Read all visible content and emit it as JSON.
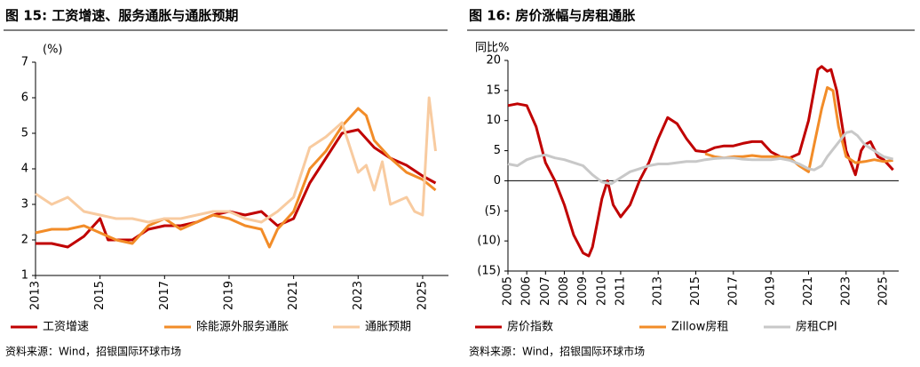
{
  "chart_data": [
    {
      "type": "line",
      "title": "图 15: 工资增速、服务通胀与通胀预期",
      "y_label": "(%)",
      "xlim": [
        2013,
        2025.8
      ],
      "xticks": [
        2013,
        2015,
        2017,
        2019,
        2021,
        2023,
        2025
      ],
      "ylim": [
        1,
        7
      ],
      "yticks": [
        1,
        2,
        3,
        4,
        5,
        6,
        7
      ],
      "grid": false,
      "source": "资料来源：Wind，招银国际环球市场",
      "series": [
        {
          "name": "工资增速",
          "color": "#c00000",
          "x": [
            2013,
            2013.5,
            2014,
            2014.5,
            2015,
            2015.25,
            2015.5,
            2016,
            2016.5,
            2017,
            2017.5,
            2018,
            2018.5,
            2019,
            2019.5,
            2020,
            2020.5,
            2021,
            2021.5,
            2022,
            2022.5,
            2023,
            2023.5,
            2024,
            2024.5,
            2025,
            2025.4
          ],
          "values": [
            1.9,
            1.9,
            1.8,
            2.1,
            2.6,
            2.0,
            2.0,
            2.0,
            2.3,
            2.4,
            2.4,
            2.5,
            2.7,
            2.8,
            2.7,
            2.8,
            2.4,
            2.6,
            3.6,
            4.3,
            5.0,
            5.1,
            4.6,
            4.3,
            4.1,
            3.8,
            3.6
          ]
        },
        {
          "name": "除能源外服务通胀",
          "color": "#f28c28",
          "x": [
            2013,
            2013.5,
            2014,
            2014.5,
            2015,
            2015.5,
            2016,
            2016.5,
            2017,
            2017.5,
            2018,
            2018.5,
            2019,
            2019.5,
            2020,
            2020.25,
            2020.5,
            2021,
            2021.5,
            2022,
            2022.5,
            2023,
            2023.25,
            2023.5,
            2024,
            2024.5,
            2025,
            2025.4
          ],
          "values": [
            2.2,
            2.3,
            2.3,
            2.4,
            2.2,
            2.0,
            1.9,
            2.4,
            2.6,
            2.3,
            2.5,
            2.7,
            2.6,
            2.4,
            2.3,
            1.8,
            2.3,
            2.8,
            4.0,
            4.5,
            5.2,
            5.7,
            5.5,
            4.8,
            4.3,
            3.9,
            3.7,
            3.4
          ]
        },
        {
          "name": "通胀预期",
          "color": "#f8cba0",
          "x": [
            2013,
            2013.5,
            2014,
            2014.5,
            2015,
            2015.5,
            2016,
            2016.5,
            2017,
            2017.5,
            2018,
            2018.5,
            2019,
            2019.5,
            2020,
            2020.5,
            2021,
            2021.5,
            2022,
            2022.5,
            2023,
            2023.25,
            2023.5,
            2023.75,
            2024,
            2024.5,
            2024.75,
            2025,
            2025.2,
            2025.4
          ],
          "values": [
            3.3,
            3.0,
            3.2,
            2.8,
            2.7,
            2.6,
            2.6,
            2.5,
            2.6,
            2.6,
            2.7,
            2.8,
            2.8,
            2.6,
            2.5,
            2.8,
            3.2,
            4.6,
            4.9,
            5.3,
            3.9,
            4.1,
            3.4,
            4.2,
            3.0,
            3.2,
            2.8,
            2.7,
            6.0,
            4.5
          ]
        }
      ]
    },
    {
      "type": "line",
      "title": "图 16: 房价涨幅与房租通胀",
      "y_label": "同比%",
      "xlim": [
        2005,
        2025.8
      ],
      "xticks": [
        2005,
        2006,
        2007,
        2008,
        2009,
        2010,
        2011,
        2013,
        2015,
        2017,
        2019,
        2021,
        2023,
        2025
      ],
      "ylim": [
        -15,
        20
      ],
      "yticks": [
        {
          "value": -15,
          "label": "(15)"
        },
        {
          "value": -10,
          "label": "(10)"
        },
        {
          "value": -5,
          "label": "(5)"
        },
        0,
        5,
        10,
        15,
        20
      ],
      "grid": false,
      "source": "资料来源：Wind，招银国际环球市场",
      "series": [
        {
          "name": "房价指数",
          "color": "#c00000",
          "x": [
            2005,
            2005.5,
            2006,
            2006.5,
            2007,
            2007.5,
            2008,
            2008.5,
            2009,
            2009.3,
            2009.5,
            2010,
            2010.3,
            2010.6,
            2011,
            2011.5,
            2012,
            2012.5,
            2013,
            2013.5,
            2014,
            2014.5,
            2015,
            2015.5,
            2016,
            2016.5,
            2017,
            2017.5,
            2018,
            2018.5,
            2019,
            2019.5,
            2020,
            2020.5,
            2021,
            2021.5,
            2021.7,
            2022,
            2022.2,
            2022.5,
            2023,
            2023.5,
            2023.8,
            2024,
            2024.3,
            2024.7,
            2025,
            2025.5
          ],
          "values": [
            12.5,
            12.8,
            12.5,
            9,
            3,
            0,
            -4,
            -9,
            -12,
            -12.5,
            -11,
            -3,
            0,
            -4,
            -6,
            -4,
            0,
            3,
            7,
            10.5,
            9.5,
            7,
            5,
            4.8,
            5.5,
            5.8,
            5.8,
            6.2,
            6.5,
            6.5,
            4.8,
            4,
            3.8,
            4.5,
            10,
            18.5,
            19,
            18.2,
            18.5,
            15,
            5,
            1,
            5,
            6,
            6.5,
            4,
            3.5,
            1.8
          ]
        },
        {
          "name": "Zillow房租",
          "color": "#f28c28",
          "x": [
            2015.5,
            2016,
            2016.5,
            2017,
            2017.5,
            2018,
            2018.5,
            2019,
            2019.5,
            2020,
            2020.5,
            2021,
            2021.3,
            2021.7,
            2022,
            2022.3,
            2022.6,
            2023,
            2023.5,
            2024,
            2024.5,
            2025,
            2025.5
          ],
          "values": [
            4.5,
            4,
            3.8,
            4,
            4,
            4.2,
            4,
            4,
            4,
            3.8,
            2.5,
            1.5,
            6,
            12,
            15.5,
            15,
            9,
            4,
            3,
            3.2,
            3.5,
            3.2,
            3.4
          ]
        },
        {
          "name": "房租CPI",
          "color": "#c8c8c8",
          "x": [
            2005,
            2005.5,
            2006,
            2006.5,
            2007,
            2007.5,
            2008,
            2008.5,
            2009,
            2009.5,
            2010,
            2010.5,
            2011,
            2011.5,
            2012,
            2012.5,
            2013,
            2013.5,
            2014,
            2014.5,
            2015,
            2015.5,
            2016,
            2016.5,
            2017,
            2017.5,
            2018,
            2018.5,
            2019,
            2019.5,
            2020,
            2020.5,
            2021,
            2021.3,
            2021.7,
            2022,
            2022.5,
            2023,
            2023.3,
            2023.6,
            2024,
            2024.5,
            2025,
            2025.5
          ],
          "values": [
            2.8,
            2.5,
            3.5,
            4,
            4.3,
            3.8,
            3.5,
            3,
            2.5,
            1,
            -0.2,
            -0.5,
            0.5,
            1.5,
            2,
            2.5,
            2.8,
            2.8,
            3,
            3.2,
            3.2,
            3.5,
            3.7,
            3.8,
            3.8,
            3.6,
            3.5,
            3.5,
            3.5,
            3.7,
            3.4,
            2.8,
            2,
            1.8,
            2.5,
            4,
            6,
            8,
            8.2,
            7.5,
            6,
            5,
            4,
            3.6
          ]
        }
      ]
    }
  ]
}
